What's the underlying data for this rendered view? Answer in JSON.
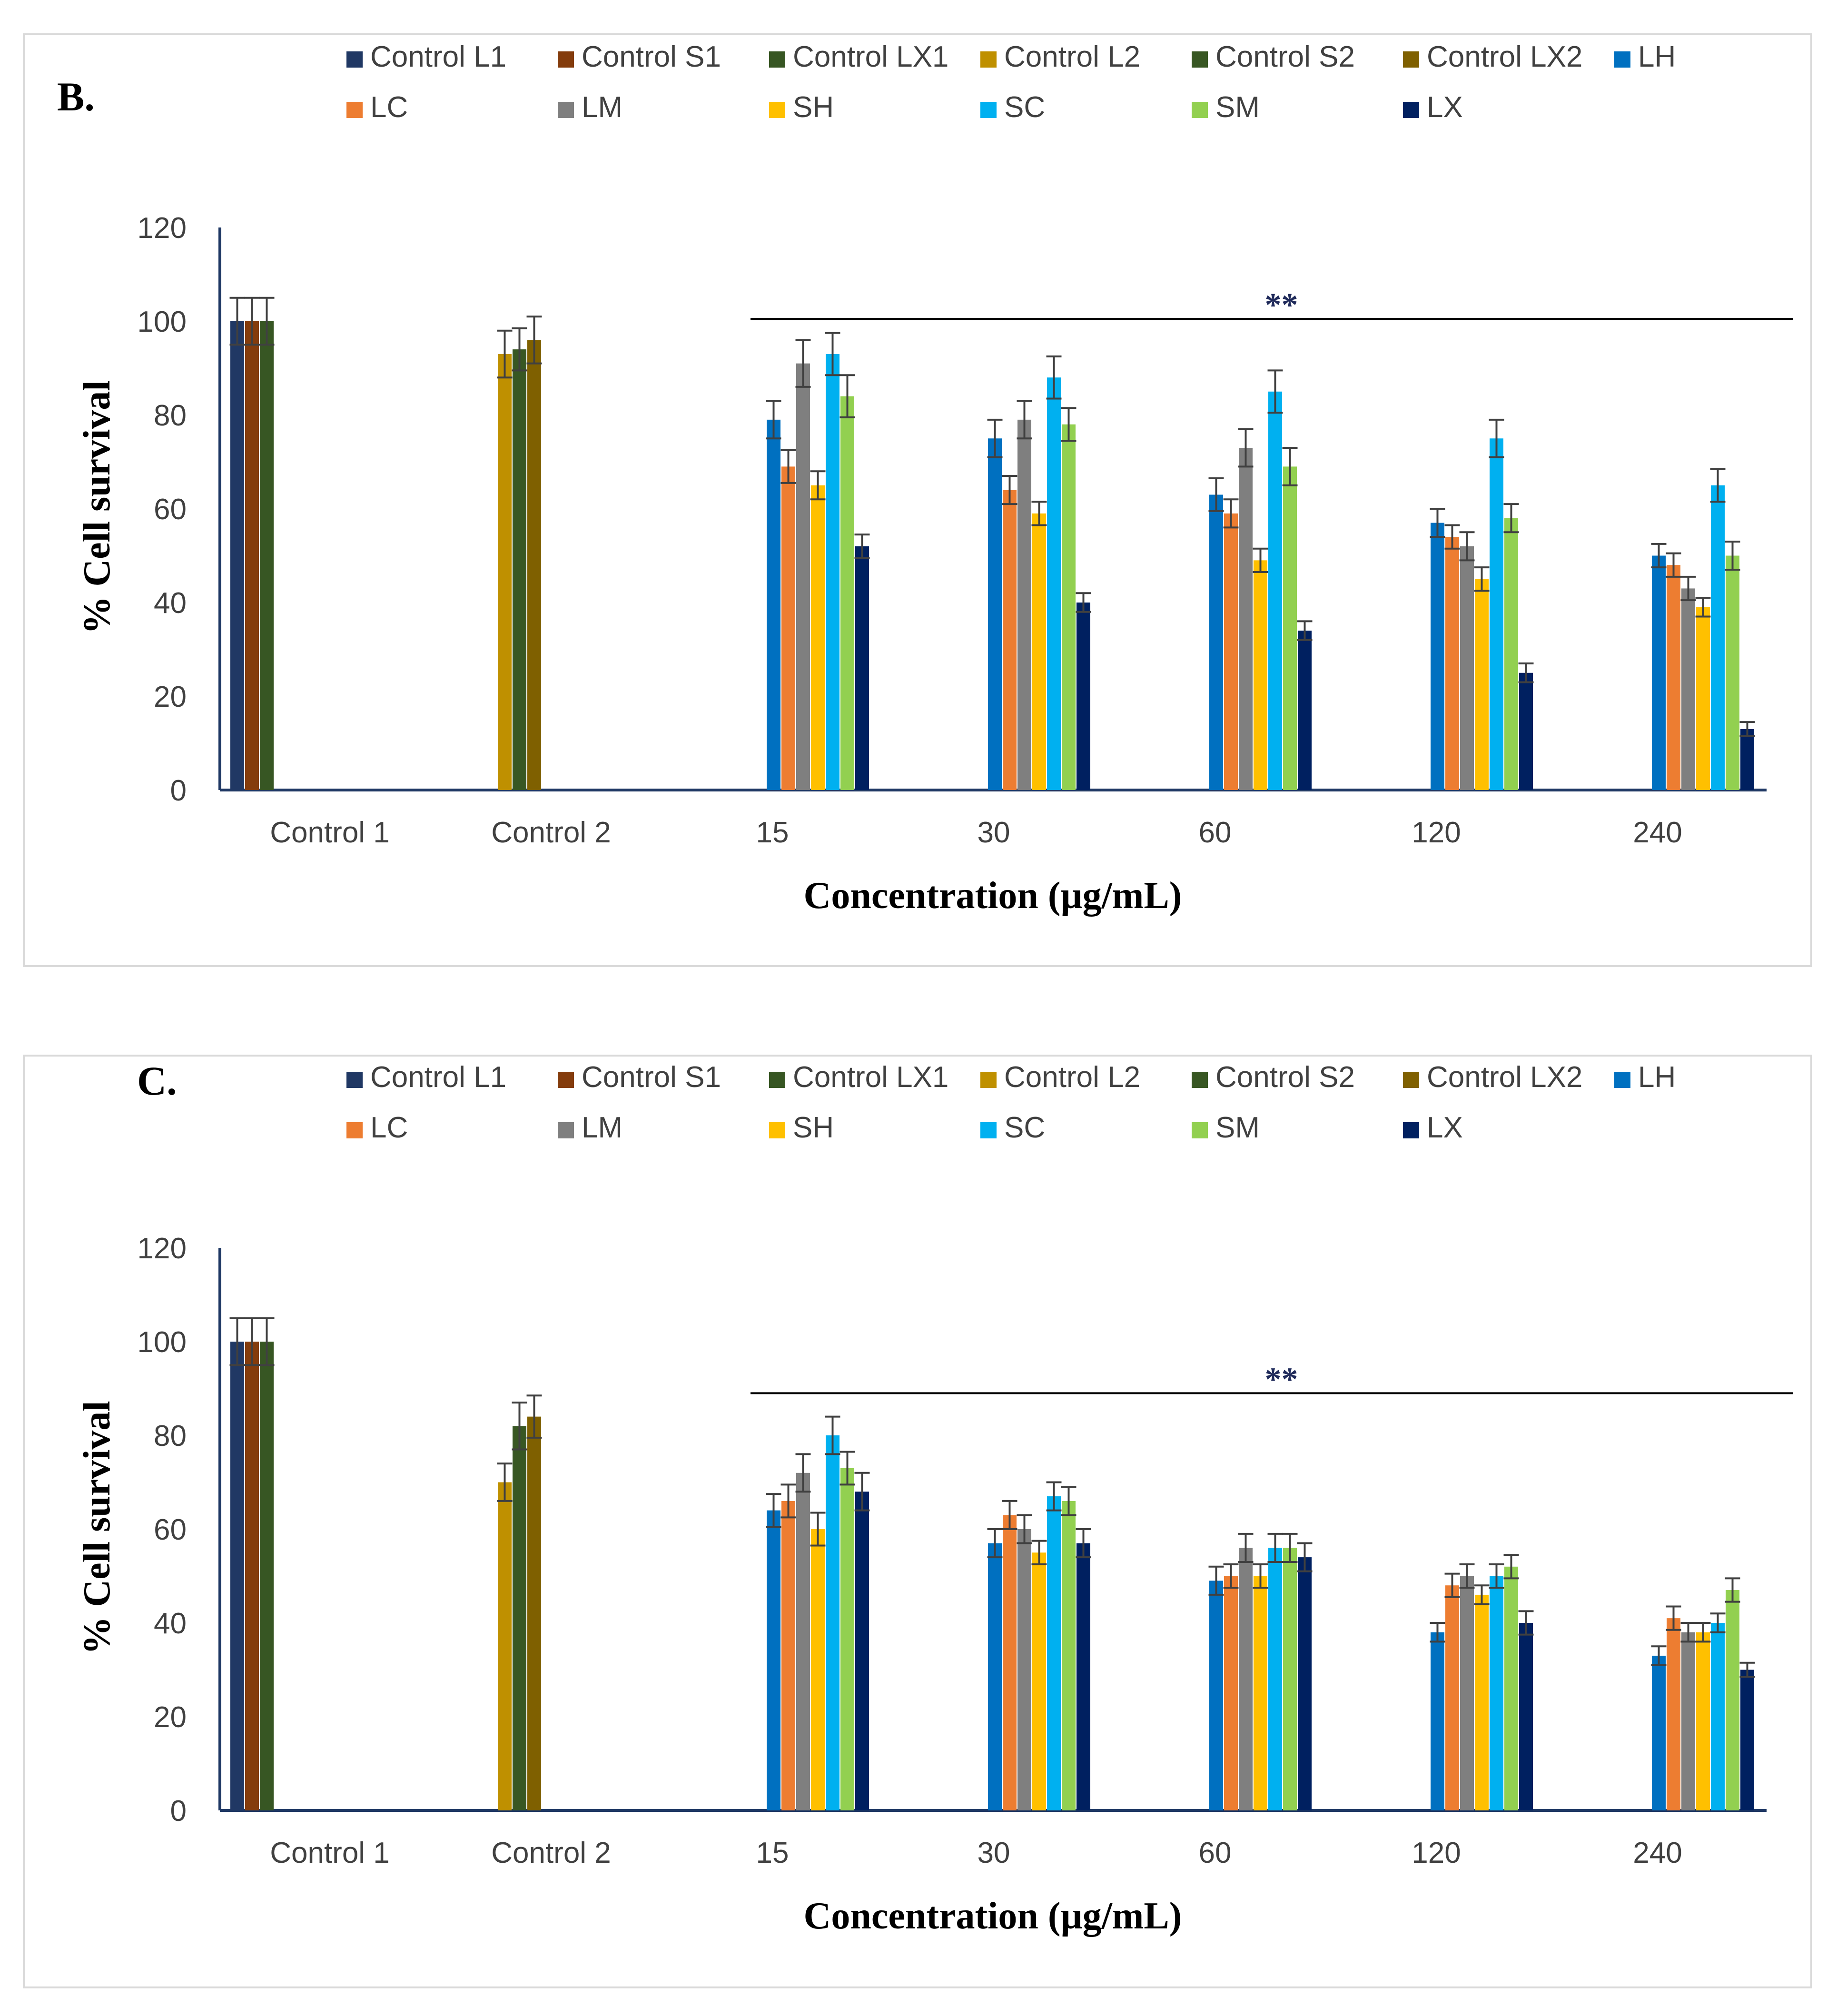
{
  "series_names": [
    "Control L1",
    "Control S1",
    "Control LX1",
    "Control L2",
    "Control S2",
    "Control LX2",
    "LH",
    "LC",
    "LM",
    "SH",
    "SC",
    "SM",
    "LX"
  ],
  "series_colors": [
    "#203864",
    "#843c0c",
    "#375623",
    "#bf9000",
    "#385723",
    "#7f6000",
    "#0070c0",
    "#ed7d31",
    "#7f7f7f",
    "#ffc000",
    "#00b0f0",
    "#92d050",
    "#002060"
  ],
  "chart_data": [
    {
      "type": "bar",
      "panel": "B.",
      "ylabel": "% Cell survival",
      "xlabel": "Concentration (µg/mL)",
      "ylim": [
        0,
        120
      ],
      "yticks": [
        "0",
        "20",
        "40",
        "60",
        "80",
        "100",
        "120"
      ],
      "categories": [
        "Control 1",
        "Control 2",
        "15",
        "30",
        "60",
        "120",
        "240"
      ],
      "significance": "**",
      "significance_from_category": "15",
      "groups": [
        {
          "category": "Control 1",
          "series": [
            "Control L1",
            "Control S1",
            "Control LX1"
          ],
          "values": [
            100,
            100,
            100
          ],
          "errors": [
            5,
            5,
            5
          ]
        },
        {
          "category": "Control 2",
          "series": [
            "Control L2",
            "Control S2",
            "Control LX2"
          ],
          "values": [
            93,
            94,
            96
          ],
          "errors": [
            5,
            4.5,
            5
          ]
        },
        {
          "category": "15",
          "series": [
            "LH",
            "LC",
            "LM",
            "SH",
            "SC",
            "SM",
            "LX"
          ],
          "values": [
            79,
            69,
            91,
            65,
            93,
            84,
            52
          ],
          "errors": [
            4,
            3.5,
            5,
            3,
            4.5,
            4.5,
            2.5
          ]
        },
        {
          "category": "30",
          "series": [
            "LH",
            "LC",
            "LM",
            "SH",
            "SC",
            "SM",
            "LX"
          ],
          "values": [
            75,
            64,
            79,
            59,
            88,
            78,
            40
          ],
          "errors": [
            4,
            3,
            4,
            2.5,
            4.5,
            3.5,
            2
          ]
        },
        {
          "category": "60",
          "series": [
            "LH",
            "LC",
            "LM",
            "SH",
            "SC",
            "SM",
            "LX"
          ],
          "values": [
            63,
            59,
            73,
            49,
            85,
            69,
            34
          ],
          "errors": [
            3.5,
            3,
            4,
            2.5,
            4.5,
            4,
            2
          ]
        },
        {
          "category": "120",
          "series": [
            "LH",
            "LC",
            "LM",
            "SH",
            "SC",
            "SM",
            "LX"
          ],
          "values": [
            57,
            54,
            52,
            45,
            75,
            58,
            25
          ],
          "errors": [
            3,
            2.5,
            3,
            2.5,
            4,
            3,
            2
          ]
        },
        {
          "category": "240",
          "series": [
            "LH",
            "LC",
            "LM",
            "SH",
            "SC",
            "SM",
            "LX"
          ],
          "values": [
            50,
            48,
            43,
            39,
            65,
            50,
            13
          ],
          "errors": [
            2.5,
            2.5,
            2.5,
            2,
            3.5,
            3,
            1.5
          ]
        }
      ]
    },
    {
      "type": "bar",
      "panel": "C.",
      "ylabel": "% Cell survival",
      "xlabel": "Concentration (µg/mL)",
      "ylim": [
        0,
        120
      ],
      "yticks": [
        "0",
        "20",
        "40",
        "60",
        "80",
        "100",
        "120"
      ],
      "categories": [
        "Control 1",
        "Control 2",
        "15",
        "30",
        "60",
        "120",
        "240"
      ],
      "significance": "**",
      "significance_from_category": "15",
      "groups": [
        {
          "category": "Control 1",
          "series": [
            "Control L1",
            "Control S1",
            "Control LX1"
          ],
          "values": [
            100,
            100,
            100
          ],
          "errors": [
            5,
            5,
            5
          ]
        },
        {
          "category": "Control 2",
          "series": [
            "Control L2",
            "Control S2",
            "Control LX2"
          ],
          "values": [
            70,
            82,
            84
          ],
          "errors": [
            4,
            5,
            4.5
          ]
        },
        {
          "category": "15",
          "series": [
            "LH",
            "LC",
            "LM",
            "SH",
            "SC",
            "SM",
            "LX"
          ],
          "values": [
            64,
            66,
            72,
            60,
            80,
            73,
            68
          ],
          "errors": [
            3.5,
            3.5,
            4,
            3.5,
            4,
            3.5,
            4
          ]
        },
        {
          "category": "30",
          "series": [
            "LH",
            "LC",
            "LM",
            "SH",
            "SC",
            "SM",
            "LX"
          ],
          "values": [
            57,
            63,
            60,
            55,
            67,
            66,
            57
          ],
          "errors": [
            3,
            3,
            3,
            2.5,
            3,
            3,
            3
          ]
        },
        {
          "category": "60",
          "series": [
            "LH",
            "LC",
            "LM",
            "SH",
            "SC",
            "SM",
            "LX"
          ],
          "values": [
            49,
            50,
            56,
            50,
            56,
            56,
            54
          ],
          "errors": [
            3,
            2.5,
            3,
            2.5,
            3,
            3,
            3
          ]
        },
        {
          "category": "120",
          "series": [
            "LH",
            "LC",
            "LM",
            "SH",
            "SC",
            "SM",
            "LX"
          ],
          "values": [
            38,
            48,
            50,
            46,
            50,
            52,
            40
          ],
          "errors": [
            2,
            2.5,
            2.5,
            2,
            2.5,
            2.5,
            2.5
          ]
        },
        {
          "category": "240",
          "series": [
            "LH",
            "LC",
            "LM",
            "SH",
            "SC",
            "SM",
            "LX"
          ],
          "values": [
            33,
            41,
            38,
            38,
            40,
            47,
            30
          ],
          "errors": [
            2,
            2.5,
            2,
            2,
            2,
            2.5,
            1.5
          ]
        }
      ]
    }
  ]
}
